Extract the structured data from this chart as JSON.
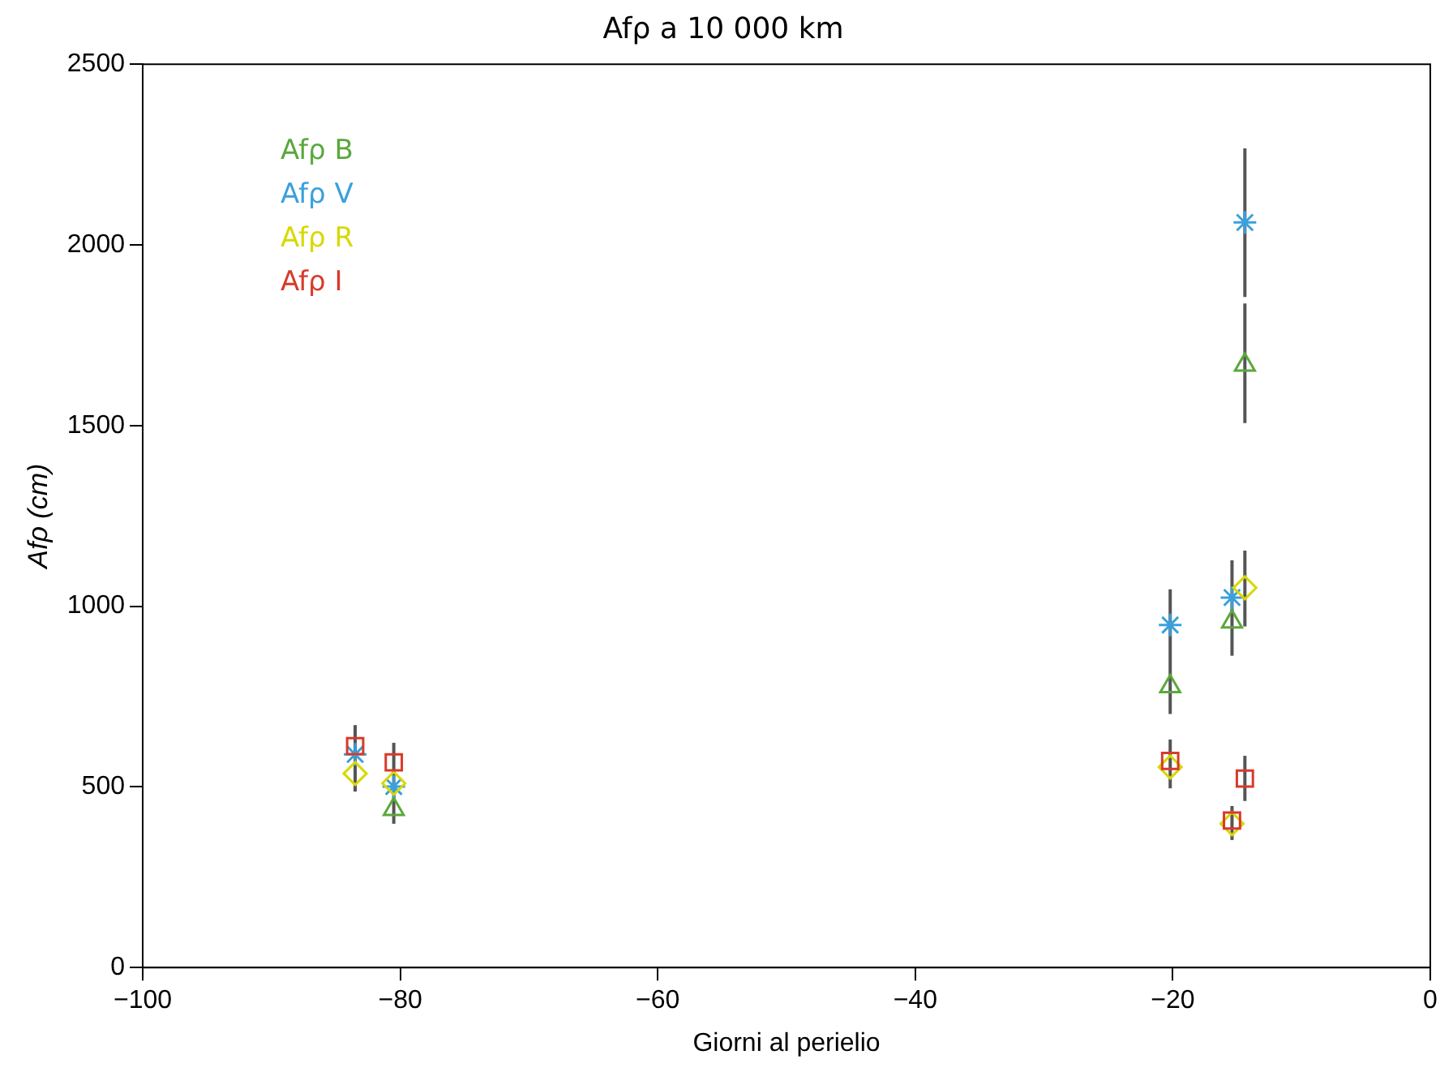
{
  "chart_data": {
    "type": "scatter",
    "title": "Afρ a 10 000 km",
    "xlabel": "Giorni al perielio",
    "ylabel": "Afρ (cm)",
    "xlim": [
      -100,
      0
    ],
    "xticks": [
      -100,
      -80,
      -60,
      -40,
      -20,
      0
    ],
    "ylim": [
      0,
      2500
    ],
    "yticks": [
      0,
      500,
      1000,
      1500,
      2000,
      2500
    ],
    "grid": false,
    "legend": "top left",
    "series": [
      {
        "name": "Afρ B",
        "color": "#5aa83c",
        "marker": "triangle",
        "x": [
          -80.5,
          -20.2,
          -15.4,
          -14.4
        ],
        "values": [
          438,
          778,
          957,
          1668
        ],
        "errors": [
          [
            398,
            622
          ],
          [
            702,
            1047
          ],
          [
            863,
            1127
          ],
          [
            1507,
            1838
          ]
        ]
      },
      {
        "name": "Afρ V",
        "color": "#3aa0dc",
        "marker": "cross",
        "x": [
          -83.5,
          -80.5,
          -20.2,
          -15.4,
          -14.4
        ],
        "values": [
          590,
          501,
          948,
          1024,
          2062
        ],
        "errors": [
          null,
          null,
          null,
          null,
          [
            1856,
            2267
          ]
        ]
      },
      {
        "name": "Afρ R",
        "color": "#d8d800",
        "marker": "diamond",
        "x": [
          -83.5,
          -80.5,
          -20.2,
          -15.4,
          -14.4
        ],
        "values": [
          537,
          510,
          555,
          398,
          1051
        ],
        "errors": [
          null,
          null,
          null,
          null,
          [
            944,
            1154
          ]
        ]
      },
      {
        "name": "Afρ I",
        "color": "#d83a2a",
        "marker": "square",
        "x": [
          -83.5,
          -80.5,
          -20.2,
          -15.4,
          -14.4
        ],
        "values": [
          613,
          568,
          572,
          407,
          523
        ],
        "errors": [
          [
            487,
            671
          ],
          null,
          [
            496,
            631
          ],
          [
            353,
            447
          ],
          [
            461,
            586
          ]
        ]
      }
    ]
  }
}
